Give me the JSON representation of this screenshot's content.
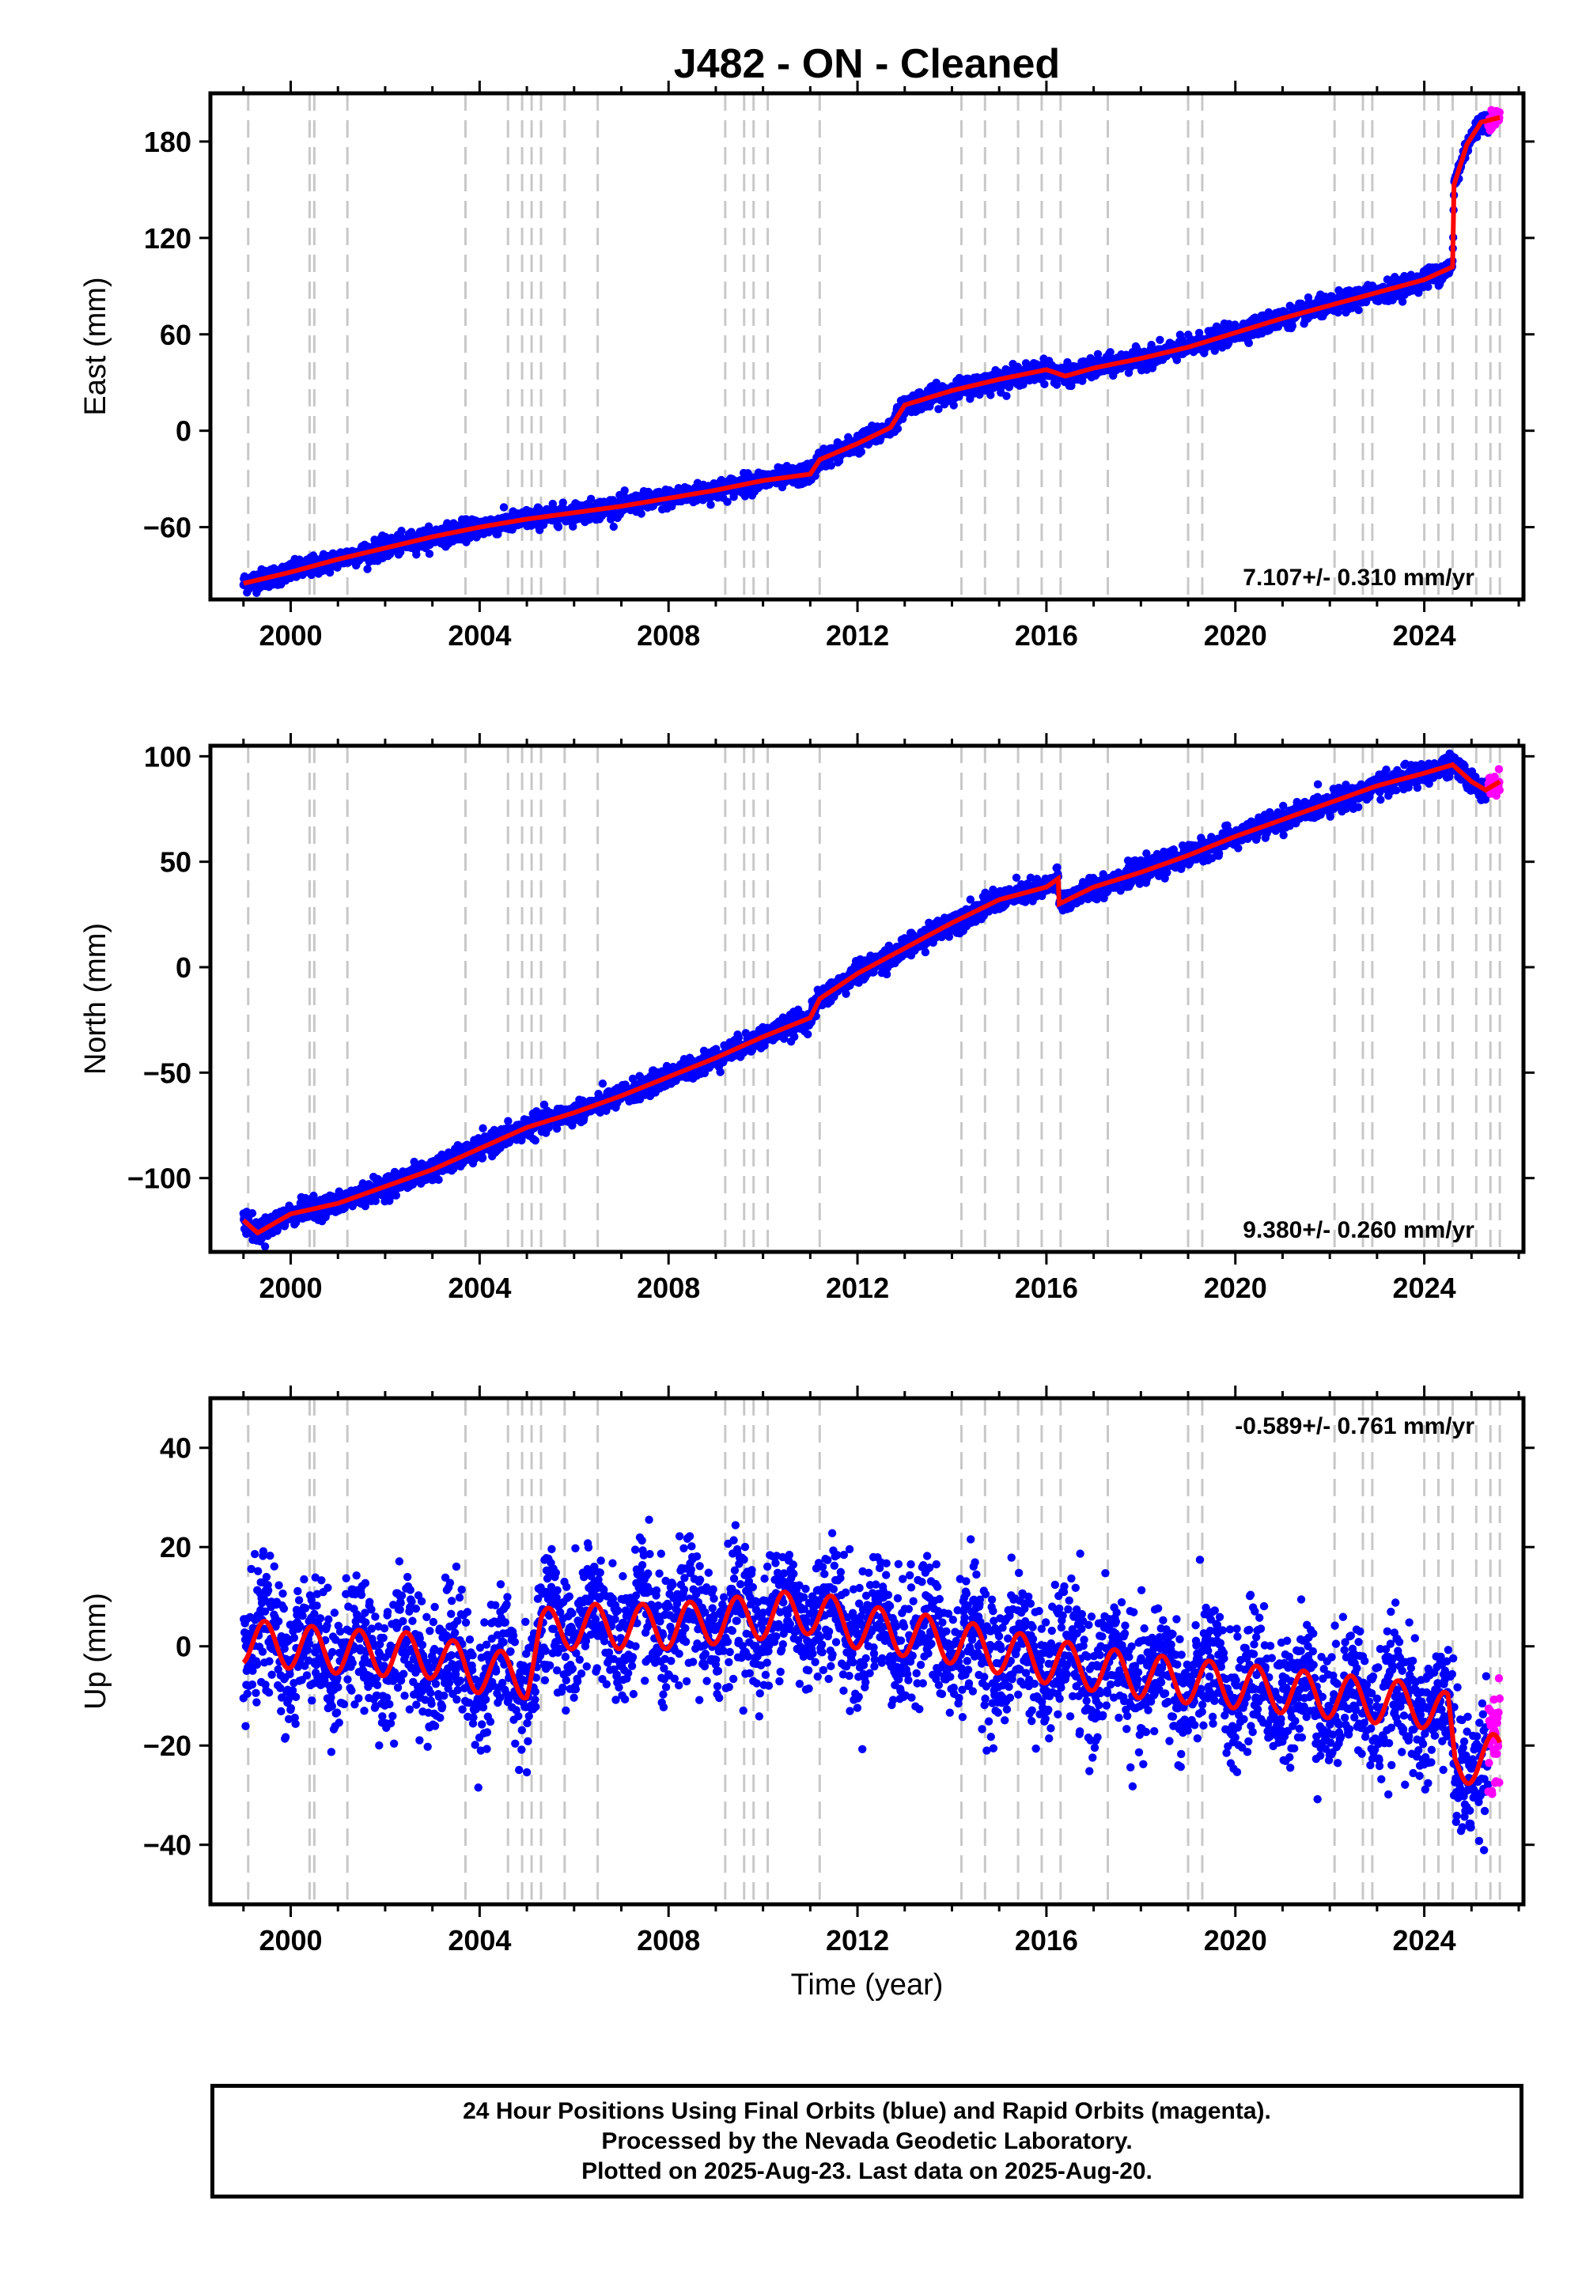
{
  "title": "J482  - ON - Cleaned",
  "xlabel": "Time (year)",
  "footer": {
    "line1": "24 Hour Positions Using Final Orbits (blue) and Rapid Orbits (magenta).",
    "line2": "Processed by the Nevada Geodetic Laboratory.",
    "line3": "Plotted on 2025-Aug-23. Last data on 2025-Aug-20."
  },
  "colors": {
    "final": "#0000ff",
    "rapid": "#ff00ff",
    "model": "#ff0000",
    "equipment_lines": "#c8c8c8"
  },
  "chart_data": [
    {
      "type": "scatter",
      "ylabel": "East (mm)",
      "rate_text": "7.107+/- 0.310 mm/yr",
      "xlim": [
        1998.3,
        2026.1
      ],
      "ylim": [
        -105,
        210
      ],
      "yticks": [
        -60,
        0,
        60,
        120,
        180
      ],
      "xticks": [
        2000,
        2004,
        2008,
        2012,
        2016,
        2020,
        2024
      ],
      "equipment_change_years": [
        1999.1,
        2000.4,
        2000.5,
        2001.2,
        2003.7,
        2004.6,
        2004.9,
        2005.1,
        2005.3,
        2005.8,
        2006.5,
        2009.2,
        2009.6,
        2009.8,
        2010.1,
        2011.2,
        2014.2,
        2014.7,
        2015.4,
        2015.9,
        2016.3,
        2017.3,
        2019.0,
        2019.3,
        2022.1,
        2022.7,
        2022.9,
        2024.0,
        2024.3,
        2024.6,
        2025.1,
        2025.4,
        2025.6
      ],
      "model": {
        "x": [
          1999.0,
          2000.0,
          2001.0,
          2002.0,
          2003.0,
          2004.0,
          2005.0,
          2006.0,
          2007.0,
          2008.0,
          2009.0,
          2010.0,
          2011.0,
          2011.2,
          2012.0,
          2012.7,
          2013.0,
          2014.0,
          2015.0,
          2016.0,
          2016.4,
          2017.0,
          2018.0,
          2019.0,
          2020.0,
          2021.0,
          2022.0,
          2023.0,
          2024.0,
          2024.6,
          2024.63,
          2024.9,
          2025.2,
          2025.6
        ],
        "y": [
          -95,
          -88,
          -80,
          -73,
          -66,
          -60,
          -55,
          -51,
          -47,
          -42,
          -37,
          -31,
          -27,
          -18,
          -8,
          2,
          16,
          25,
          32,
          38,
          34,
          39,
          45,
          52,
          61,
          70,
          78,
          86,
          94,
          102,
          153,
          178,
          192,
          195
        ]
      },
      "final_noise": 3.0,
      "rapid_start": 2025.35
    },
    {
      "type": "scatter",
      "ylabel": "North (mm)",
      "rate_text": "9.380+/- 0.260 mm/yr",
      "xlim": [
        1998.3,
        2026.1
      ],
      "ylim": [
        -135,
        105
      ],
      "yticks": [
        -100,
        -50,
        0,
        50,
        100
      ],
      "xticks": [
        2000,
        2004,
        2008,
        2012,
        2016,
        2020,
        2024
      ],
      "equipment_change_years": [
        1999.1,
        2000.4,
        2000.5,
        2001.2,
        2003.7,
        2004.6,
        2004.9,
        2005.1,
        2005.3,
        2005.8,
        2006.5,
        2009.2,
        2009.6,
        2009.8,
        2010.1,
        2011.2,
        2014.2,
        2014.7,
        2015.4,
        2015.9,
        2016.3,
        2017.3,
        2019.0,
        2019.3,
        2022.1,
        2022.7,
        2022.9,
        2024.0,
        2024.3,
        2024.6,
        2025.1,
        2025.4,
        2025.6
      ],
      "model": {
        "x": [
          1999.0,
          1999.3,
          2000.0,
          2001.0,
          2002.0,
          2003.0,
          2004.0,
          2005.0,
          2006.0,
          2007.0,
          2008.0,
          2009.0,
          2010.0,
          2011.0,
          2011.2,
          2012.0,
          2013.0,
          2014.0,
          2015.0,
          2016.0,
          2016.25,
          2016.27,
          2017.0,
          2018.0,
          2019.0,
          2020.0,
          2021.0,
          2022.0,
          2023.0,
          2024.0,
          2024.6,
          2025.0,
          2025.3,
          2025.6
        ],
        "y": [
          -120,
          -126,
          -117,
          -112,
          -104,
          -96,
          -86,
          -76,
          -69,
          -61,
          -52,
          -43,
          -33,
          -24,
          -15,
          -3,
          9,
          21,
          32,
          38,
          42,
          30,
          38,
          45,
          53,
          62,
          70,
          78,
          86,
          92,
          96,
          88,
          84,
          88
        ]
      },
      "final_noise": 2.5,
      "rapid_start": 2025.35
    },
    {
      "type": "scatter",
      "ylabel": "Up (mm)",
      "rate_text": "-0.589+/- 0.761 mm/yr",
      "xlim": [
        1998.3,
        2026.1
      ],
      "ylim": [
        -52,
        50
      ],
      "yticks": [
        -40,
        -20,
        0,
        20,
        40
      ],
      "xticks": [
        2000,
        2004,
        2008,
        2012,
        2016,
        2020,
        2024
      ],
      "equipment_change_years": [
        1999.1,
        2000.4,
        2000.5,
        2001.2,
        2003.7,
        2004.6,
        2004.9,
        2005.1,
        2005.3,
        2005.8,
        2006.5,
        2009.2,
        2009.6,
        2009.8,
        2010.1,
        2011.2,
        2014.2,
        2014.7,
        2015.4,
        2015.9,
        2016.3,
        2017.3,
        2019.0,
        2019.3,
        2022.1,
        2022.7,
        2022.9,
        2024.0,
        2024.3,
        2024.6,
        2025.1,
        2025.4,
        2025.6
      ],
      "model": {
        "x": [
          1999.0,
          2001.0,
          2003.0,
          2004.0,
          2005.0,
          2005.3,
          2006.0,
          2008.0,
          2010.0,
          2011.0,
          2012.0,
          2014.0,
          2016.0,
          2018.0,
          2020.0,
          2022.0,
          2024.0,
          2024.5,
          2024.65,
          2025.0,
          2025.6
        ],
        "y": [
          1,
          -1,
          -2,
          -5,
          -6,
          3,
          4,
          4,
          6,
          7,
          4,
          1,
          -3,
          -6,
          -8,
          -10,
          -12,
          -14,
          -24,
          -23,
          -22
        ]
      },
      "seasonal_amplitude": 4.5,
      "final_noise": 6.5,
      "rapid_start": 2025.35
    }
  ]
}
